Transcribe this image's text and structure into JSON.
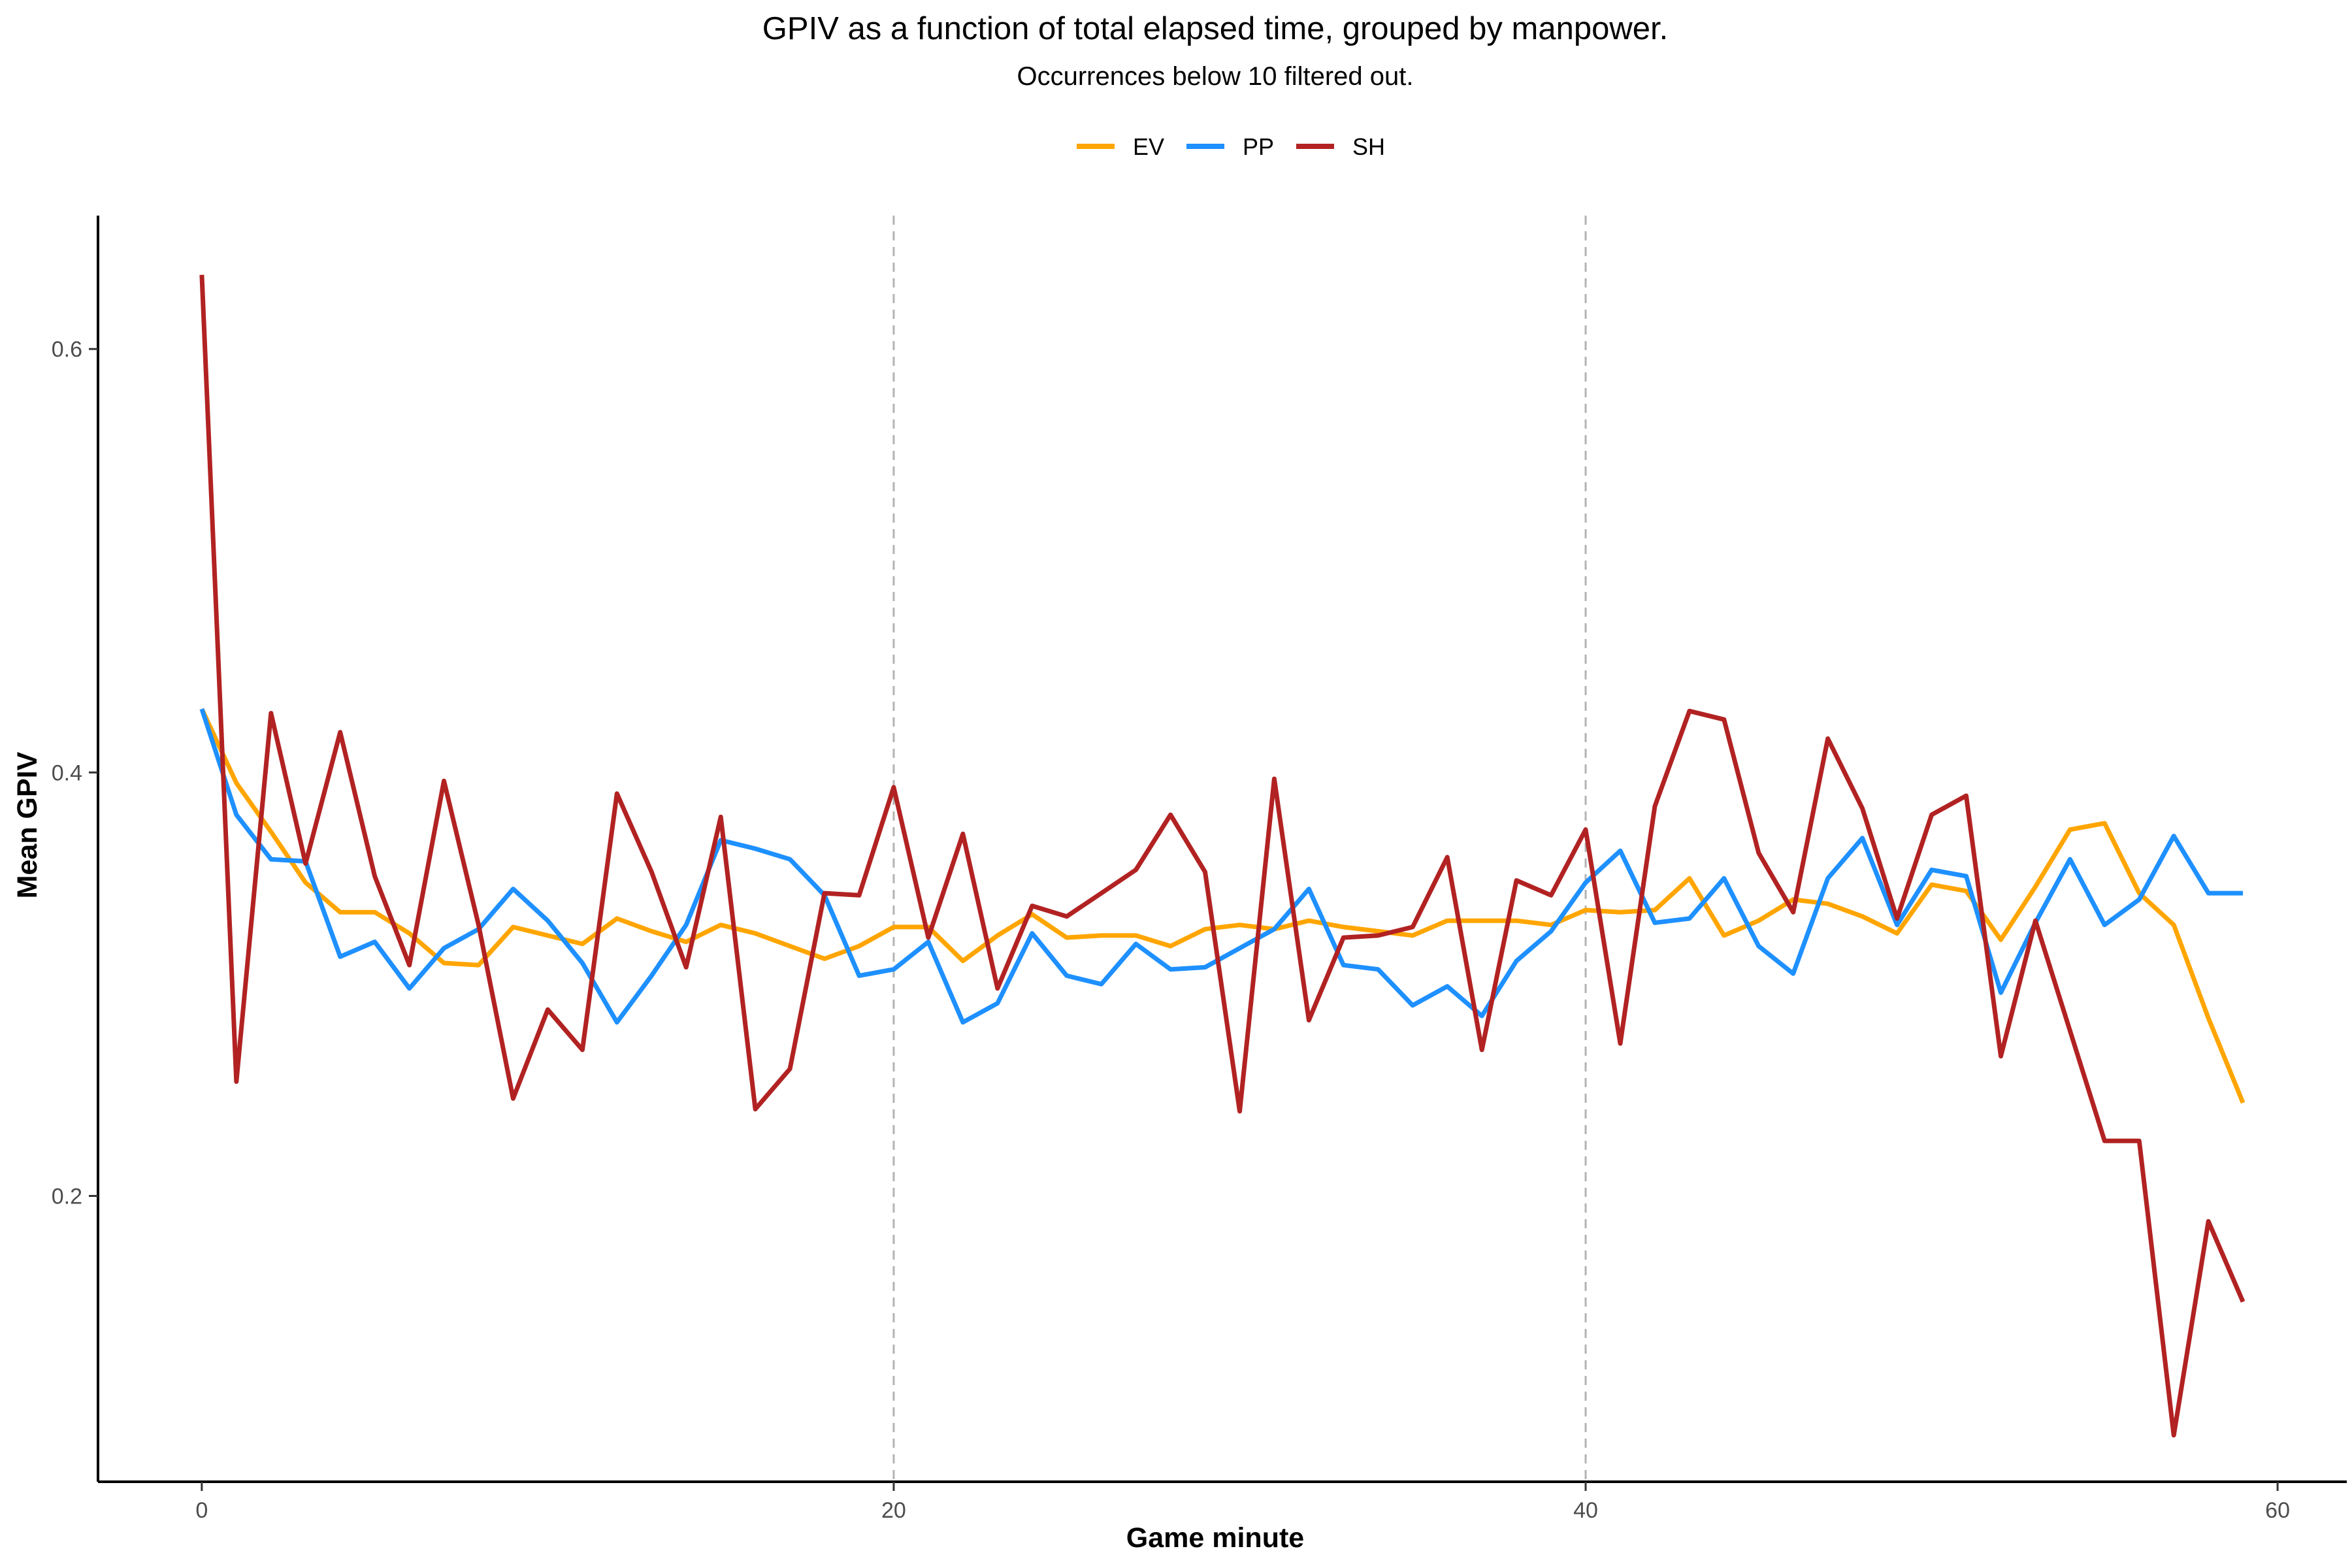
{
  "chart_data": {
    "type": "line",
    "title": "GPIV as a function of total elapsed time, grouped by manpower.",
    "subtitle": "Occurrences below 10 filtered out.",
    "xlabel": "Game minute",
    "ylabel": "Mean GPIV",
    "xlim": [
      -3,
      62
    ],
    "ylim": [
      0.065,
      0.663
    ],
    "x_ticks": [
      0,
      20,
      40,
      60
    ],
    "x_tick_labels": [
      "0",
      "20",
      "40",
      "60"
    ],
    "y_ticks": [
      0.2,
      0.4,
      0.6
    ],
    "y_tick_labels": [
      "0.2",
      "0.4",
      "0.6"
    ],
    "vlines": [
      20,
      40
    ],
    "grid": false,
    "legend_position": "top",
    "x": [
      0,
      1,
      2,
      3,
      4,
      5,
      6,
      7,
      8,
      9,
      10,
      11,
      12,
      13,
      14,
      15,
      16,
      17,
      18,
      19,
      20,
      21,
      22,
      23,
      24,
      25,
      26,
      27,
      28,
      29,
      30,
      31,
      32,
      33,
      34,
      35,
      36,
      37,
      38,
      39,
      40,
      41,
      42,
      43,
      44,
      45,
      46,
      47,
      48,
      49,
      50,
      51,
      52,
      53,
      54,
      55,
      56,
      57,
      58,
      59
    ],
    "series": [
      {
        "name": "EV",
        "color": "#FFA500",
        "values": [
          0.43,
          0.395,
          0.372,
          0.348,
          0.334,
          0.334,
          0.324,
          0.31,
          0.309,
          0.327,
          0.323,
          0.319,
          0.331,
          0.325,
          0.32,
          0.328,
          0.324,
          0.318,
          0.312,
          0.318,
          0.327,
          0.327,
          0.311,
          0.323,
          0.333,
          0.322,
          0.323,
          0.323,
          0.318,
          0.326,
          0.328,
          0.326,
          0.33,
          0.327,
          0.325,
          0.323,
          0.33,
          0.33,
          0.33,
          0.328,
          0.335,
          0.334,
          0.335,
          0.35,
          0.323,
          0.33,
          0.34,
          0.338,
          0.332,
          0.324,
          0.347,
          0.344,
          0.321,
          0.346,
          0.373,
          0.376,
          0.343,
          0.328,
          0.284,
          0.244
        ]
      },
      {
        "name": "PP",
        "color": "#1E90FF",
        "values": [
          0.43,
          0.38,
          0.359,
          0.358,
          0.313,
          0.32,
          0.298,
          0.317,
          0.326,
          0.345,
          0.33,
          0.31,
          0.282,
          0.304,
          0.328,
          0.368,
          0.364,
          0.359,
          0.342,
          0.304,
          0.307,
          0.32,
          0.282,
          0.291,
          0.324,
          0.304,
          0.3,
          0.319,
          0.307,
          0.308,
          0.317,
          0.326,
          0.345,
          0.309,
          0.307,
          0.29,
          0.299,
          0.285,
          0.311,
          0.325,
          0.348,
          0.363,
          0.329,
          0.331,
          0.35,
          0.318,
          0.305,
          0.35,
          0.369,
          0.328,
          0.354,
          0.351,
          0.296,
          0.329,
          0.359,
          0.328,
          0.34,
          0.37,
          0.343,
          0.343
        ]
      },
      {
        "name": "SH",
        "color": "#B22222",
        "values": [
          0.635,
          0.254,
          0.428,
          0.357,
          0.419,
          0.351,
          0.309,
          0.396,
          0.328,
          0.246,
          0.288,
          0.269,
          0.39,
          0.353,
          0.308,
          0.379,
          0.241,
          0.26,
          0.343,
          0.342,
          0.393,
          0.322,
          0.371,
          0.298,
          0.337,
          0.332,
          0.343,
          0.354,
          0.38,
          0.353,
          0.24,
          0.397,
          0.283,
          0.322,
          0.323,
          0.327,
          0.36,
          0.269,
          0.349,
          0.342,
          0.373,
          0.272,
          0.384,
          0.429,
          0.425,
          0.362,
          0.334,
          0.416,
          0.383,
          0.331,
          0.38,
          0.389,
          0.266,
          0.33,
          0.278,
          0.226,
          0.226,
          0.087,
          0.188,
          0.15
        ]
      }
    ]
  }
}
